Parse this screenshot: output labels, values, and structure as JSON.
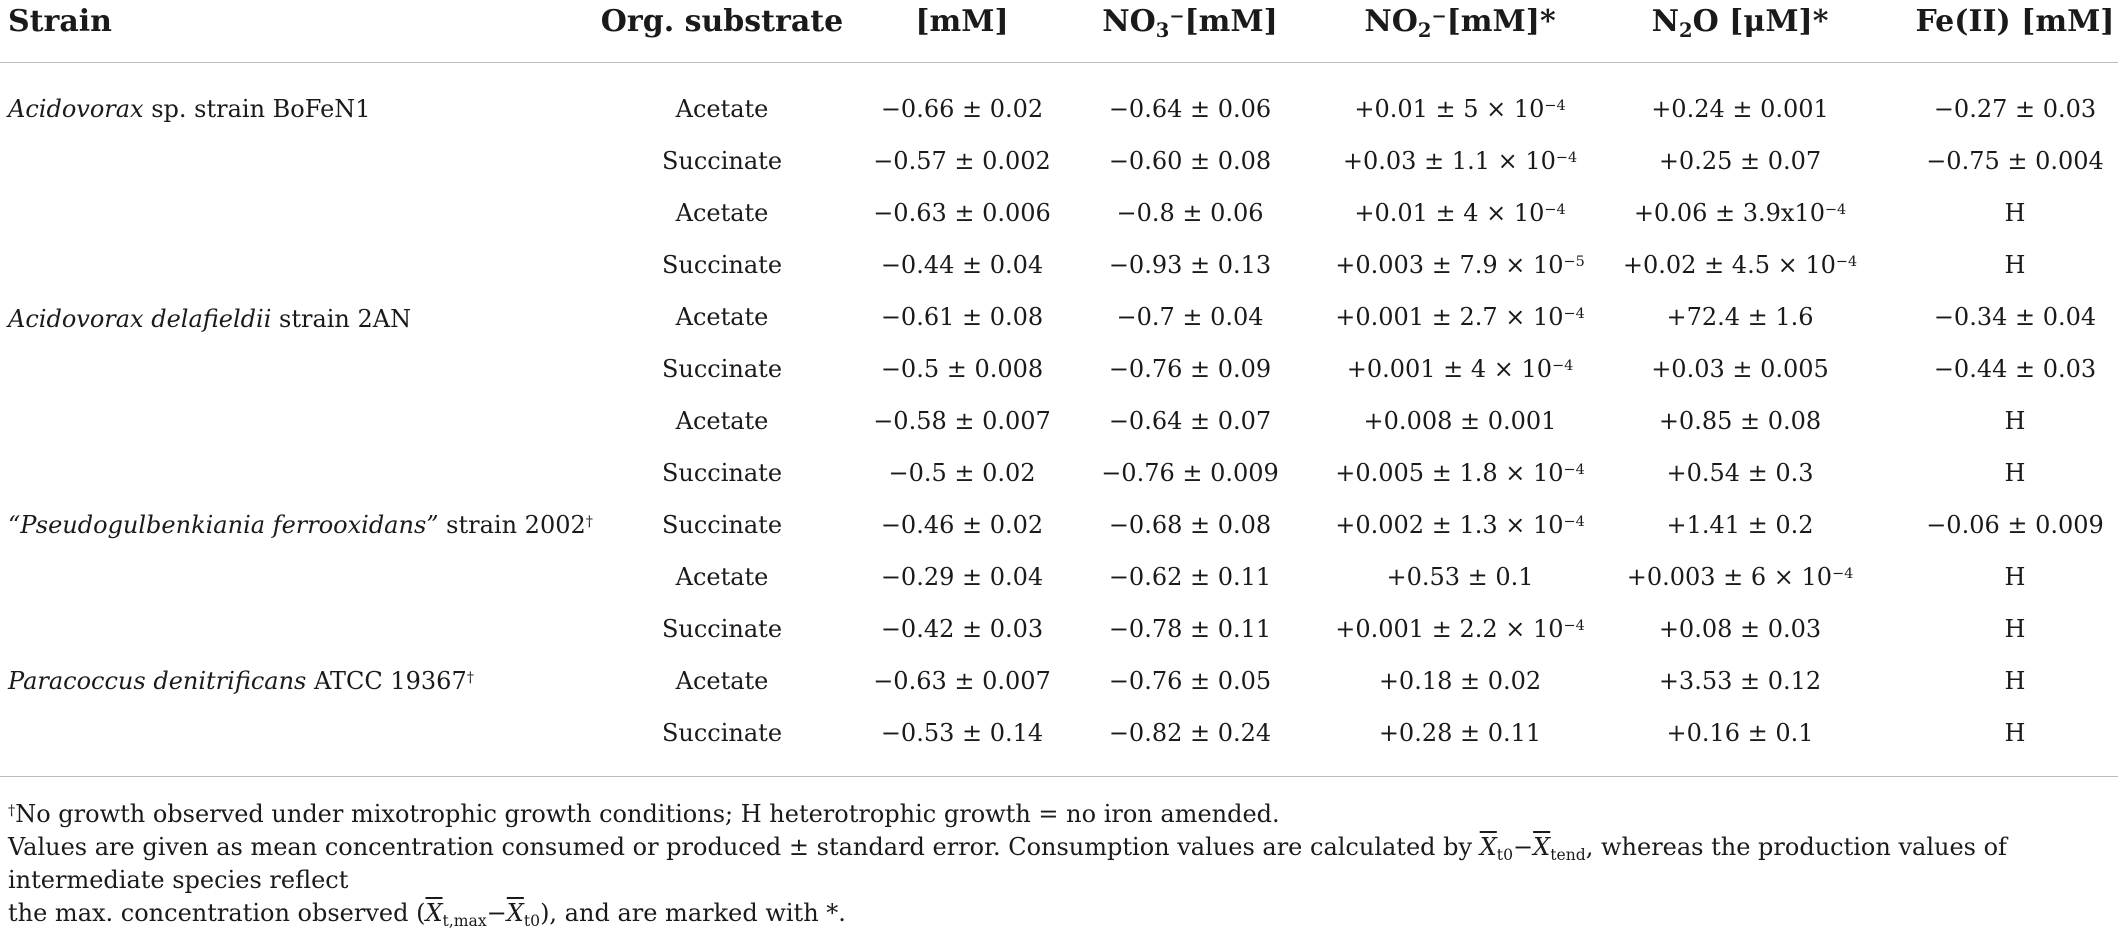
{
  "header": {
    "strain": "Strain",
    "org_substrate": "Org. substrate",
    "substrate_mm": "[mM]",
    "no3_base": "NO",
    "no3_sub": "3",
    "no3_sup": "−",
    "no3_unit": "[mM]",
    "no2_base": "NO",
    "no2_sub": "2",
    "no2_sup": "−",
    "no2_unit": "[mM]*",
    "n2o_base": "N",
    "n2o_sub": "2",
    "n2o_rest": "O [μM]*",
    "fe": "Fe(II) [mM]"
  },
  "strains": [
    {
      "name_italic": "Acidovorax",
      "name_rest": " sp. strain BoFeN1",
      "mark": ""
    },
    {
      "name_italic": "Acidovorax delafieldii",
      "name_rest": " strain 2AN",
      "mark": ""
    },
    {
      "name_italic": "“Pseudogulbenkiania ferrooxidans”",
      "name_rest": " strain 2002",
      "mark": "†"
    },
    {
      "name_italic": "Paracoccus denitrificans",
      "name_rest": " ATCC 19367",
      "mark": "†"
    }
  ],
  "rows": [
    {
      "substrate": "Acetate",
      "mm": "−0.66 ± 0.02",
      "no3": "−0.64 ± 0.06",
      "no2": "+0.01 ± 5 × 10",
      "no2_exp": "−4",
      "n2o": "+0.24 ± 0.001",
      "n2o_exp": "",
      "fe": "−0.27 ± 0.03"
    },
    {
      "substrate": "Succinate",
      "mm": "−0.57 ± 0.002",
      "no3": "−0.60 ± 0.08",
      "no2": "+0.03 ± 1.1 × 10",
      "no2_exp": "−4",
      "n2o": "+0.25 ± 0.07",
      "n2o_exp": "",
      "fe": "−0.75 ± 0.004"
    },
    {
      "substrate": "Acetate",
      "mm": "−0.63 ± 0.006",
      "no3": "−0.8 ± 0.06",
      "no2": "+0.01 ± 4 × 10",
      "no2_exp": "−4",
      "n2o": "+0.06 ± 3.9x10",
      "n2o_exp": "−4",
      "fe": "H"
    },
    {
      "substrate": "Succinate",
      "mm": "−0.44 ± 0.04",
      "no3": "−0.93 ± 0.13",
      "no2": "+0.003 ± 7.9 × 10",
      "no2_exp": "−5",
      "n2o": "+0.02 ± 4.5 × 10",
      "n2o_exp": "−4",
      "fe": "H"
    },
    {
      "substrate": "Acetate",
      "mm": "−0.61 ± 0.08",
      "no3": "−0.7 ± 0.04",
      "no2": "+0.001 ± 2.7 × 10",
      "no2_exp": "−4",
      "n2o": "+72.4 ± 1.6",
      "n2o_exp": "",
      "fe": "−0.34 ± 0.04"
    },
    {
      "substrate": "Succinate",
      "mm": "−0.5 ± 0.008",
      "no3": "−0.76 ± 0.09",
      "no2": "+0.001 ± 4 × 10",
      "no2_exp": "−4",
      "n2o": "+0.03 ± 0.005",
      "n2o_exp": "",
      "fe": "−0.44 ± 0.03"
    },
    {
      "substrate": "Acetate",
      "mm": "−0.58 ± 0.007",
      "no3": "−0.64 ± 0.07",
      "no2": "+0.008 ± 0.001",
      "no2_exp": "",
      "n2o": "+0.85 ± 0.08",
      "n2o_exp": "",
      "fe": "H"
    },
    {
      "substrate": "Succinate",
      "mm": "−0.5 ± 0.02",
      "no3": "−0.76 ± 0.009",
      "no2": "+0.005 ± 1.8 × 10",
      "no2_exp": "−4",
      "n2o": "+0.54 ± 0.3",
      "n2o_exp": "",
      "fe": "H"
    },
    {
      "substrate": "Succinate",
      "mm": "−0.46 ± 0.02",
      "no3": "−0.68 ± 0.08",
      "no2": "+0.002 ± 1.3 × 10",
      "no2_exp": "−4",
      "n2o": "+1.41 ± 0.2",
      "n2o_exp": "",
      "fe": "−0.06 ± 0.009"
    },
    {
      "substrate": "Acetate",
      "mm": "−0.29 ± 0.04",
      "no3": "−0.62 ± 0.11",
      "no2": "+0.53 ± 0.1",
      "no2_exp": "",
      "n2o": "+0.003 ± 6 × 10",
      "n2o_exp": "−4",
      "fe": "H"
    },
    {
      "substrate": "Succinate",
      "mm": "−0.42 ± 0.03",
      "no3": "−0.78 ± 0.11",
      "no2": "+0.001 ± 2.2 × 10",
      "no2_exp": "−4",
      "n2o": "+0.08 ± 0.03",
      "n2o_exp": "",
      "fe": "H"
    },
    {
      "substrate": "Acetate",
      "mm": "−0.63 ± 0.007",
      "no3": "−0.76 ± 0.05",
      "no2": "+0.18 ± 0.02",
      "no2_exp": "",
      "n2o": "+3.53 ± 0.12",
      "n2o_exp": "",
      "fe": "H"
    },
    {
      "substrate": "Succinate",
      "mm": "−0.53 ± 0.14",
      "no3": "−0.82 ± 0.24",
      "no2": "+0.28 ± 0.11",
      "no2_exp": "",
      "n2o": "+0.16 ± 0.1",
      "n2o_exp": "",
      "fe": "H"
    }
  ],
  "footnotes": {
    "dagger": "†",
    "note1": "No growth observed under mixotrophic growth conditions; H heterotrophic growth = no iron amended.",
    "note2_a": "Values are given as mean concentration consumed or produced ± standard error. Consumption values are calculated by ",
    "x_sym": "X",
    "sub_t0": "t0",
    "minus": "−",
    "sub_tend": "tend",
    "note2_b": ", whereas the production values of intermediate species reflect",
    "note3_a": "the max. concentration observed (",
    "sub_tmax": "t,max",
    "note3_b": "), and are marked with *."
  }
}
